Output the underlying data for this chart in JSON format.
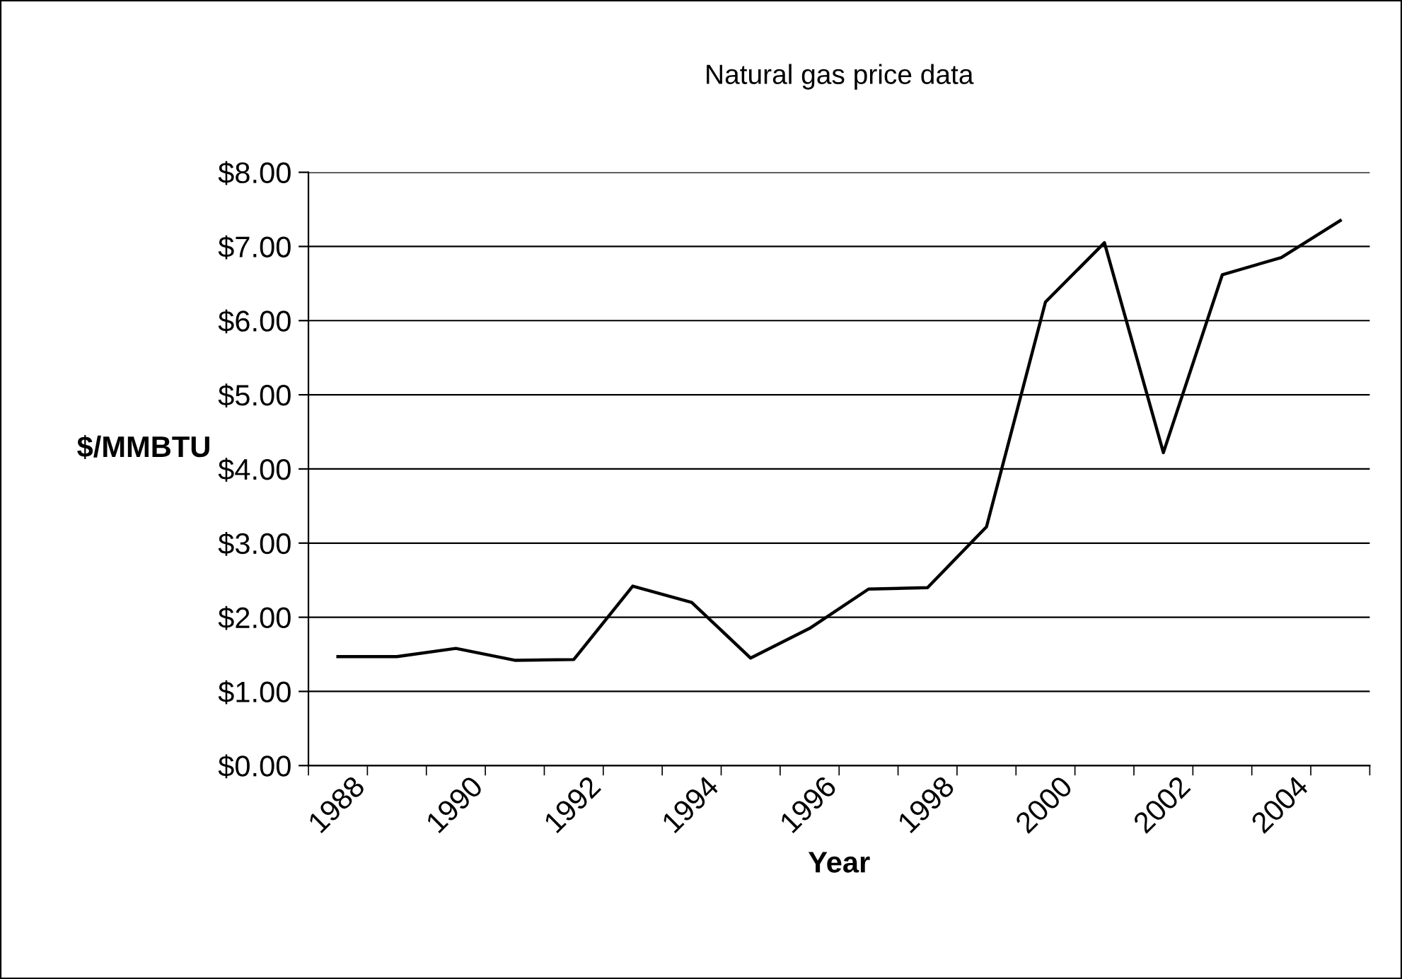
{
  "chart_data": {
    "type": "line",
    "title": "Natural gas price data",
    "xlabel": "Year",
    "ylabel": "$/MMBTU",
    "categories": [
      "1988",
      null,
      "1990",
      null,
      "1992",
      null,
      "1994",
      null,
      "1996",
      null,
      "1998",
      null,
      "2000",
      null,
      "2002",
      null,
      "2004",
      null
    ],
    "series": [
      {
        "color": "#000000",
        "values": [
          1.47,
          1.47,
          1.58,
          1.42,
          1.43,
          2.42,
          2.2,
          1.45,
          1.85,
          2.38,
          2.4,
          3.22,
          6.25,
          7.05,
          4.22,
          6.62,
          6.85,
          7.35
        ]
      }
    ],
    "ylim": [
      0,
      8
    ],
    "yticks": [
      {
        "value": 0,
        "label": "$0.00"
      },
      {
        "value": 1,
        "label": "$1.00"
      },
      {
        "value": 2,
        "label": "$2.00"
      },
      {
        "value": 3,
        "label": "$3.00"
      },
      {
        "value": 4,
        "label": "$4.00"
      },
      {
        "value": 5,
        "label": "$5.00"
      },
      {
        "value": 6,
        "label": "$6.00"
      },
      {
        "value": 7,
        "label": "$7.00"
      },
      {
        "value": 8,
        "label": "$8.00"
      }
    ],
    "grid": "y",
    "marker": "none",
    "line_style": "solid"
  }
}
